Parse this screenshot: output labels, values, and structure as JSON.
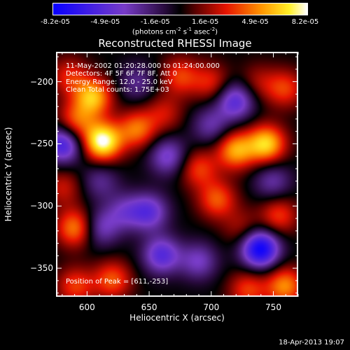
{
  "chart_data": {
    "type": "heatmap",
    "title": "Reconstructed RHESSI Image",
    "xlabel": "Heliocentric X (arcsec)",
    "ylabel": "Heliocentric Y (arcsec)",
    "xlim": [
      575,
      770
    ],
    "ylim": [
      -373,
      -176
    ],
    "x_ticks": [
      600,
      650,
      700,
      750
    ],
    "y_ticks": [
      -200,
      -250,
      -300,
      -350
    ],
    "colorbar": {
      "ticks": [
        "-8.2e-05",
        "-4.9e-05",
        "-1.6e-05",
        "1.6e-05",
        "4.9e-05",
        "8.2e-05"
      ],
      "units_base": "(photons cm",
      "units_exp1": "-2",
      "units_mid": " s",
      "units_exp2": "-1",
      "units_end": " asec",
      "units_exp3": "-2",
      "units_close": ")",
      "min": -8.2e-05,
      "max": 8.2e-05
    },
    "annotations": {
      "time_range": "11-May-2002 01:20:28.000 to 01:24:00.000",
      "detectors": "Detectors: 4F 5F 6F 7F 8F, Att 0",
      "energy": "Energy Range: 12.0 - 25.0 keV",
      "clean": "Clean    Total counts: 1.75E+03",
      "peak": "Position of Peak = [611,-253]"
    },
    "blobs": [
      {
        "x": 612,
        "y": -248,
        "v": 8.2e-05
      },
      {
        "x": 604,
        "y": -212,
        "v": 6e-05
      },
      {
        "x": 590,
        "y": -232,
        "v": 4e-05
      },
      {
        "x": 640,
        "y": -238,
        "v": 4.5e-05
      },
      {
        "x": 662,
        "y": -225,
        "v": 2.5e-05
      },
      {
        "x": 675,
        "y": -195,
        "v": 3.5e-05
      },
      {
        "x": 585,
        "y": -195,
        "v": 3e-05
      },
      {
        "x": 720,
        "y": -255,
        "v": 5.5e-05
      },
      {
        "x": 745,
        "y": -250,
        "v": 6.5e-05
      },
      {
        "x": 760,
        "y": -205,
        "v": 3.5e-05
      },
      {
        "x": 738,
        "y": -200,
        "v": 2e-05
      },
      {
        "x": 700,
        "y": -200,
        "v": 3e-05
      },
      {
        "x": 690,
        "y": -270,
        "v": 3.5e-05
      },
      {
        "x": 705,
        "y": -295,
        "v": 4e-05
      },
      {
        "x": 755,
        "y": -308,
        "v": 3.5e-05
      },
      {
        "x": 725,
        "y": -318,
        "v": 2e-05
      },
      {
        "x": 590,
        "y": -318,
        "v": 5e-05
      },
      {
        "x": 580,
        "y": -285,
        "v": 2.5e-05
      },
      {
        "x": 620,
        "y": -360,
        "v": 4e-05
      },
      {
        "x": 590,
        "y": -365,
        "v": 3.5e-05
      },
      {
        "x": 760,
        "y": -365,
        "v": 5e-05
      },
      {
        "x": 730,
        "y": -368,
        "v": 3.5e-05
      },
      {
        "x": 665,
        "y": -260,
        "v": -4e-05
      },
      {
        "x": 650,
        "y": -305,
        "v": -4.5e-05
      },
      {
        "x": 660,
        "y": -340,
        "v": -5e-05
      },
      {
        "x": 690,
        "y": -345,
        "v": -3.5e-05
      },
      {
        "x": 630,
        "y": -305,
        "v": -3e-05
      },
      {
        "x": 740,
        "y": -335,
        "v": -8.2e-05
      },
      {
        "x": 720,
        "y": -215,
        "v": -5e-05
      },
      {
        "x": 580,
        "y": -250,
        "v": -6e-05
      },
      {
        "x": 700,
        "y": -235,
        "v": -3e-05
      },
      {
        "x": 610,
        "y": -280,
        "v": -2.5e-05
      },
      {
        "x": 750,
        "y": -280,
        "v": -3e-05
      },
      {
        "x": 640,
        "y": -200,
        "v": -2.5e-05
      },
      {
        "x": 610,
        "y": -318,
        "v": -3.5e-05
      }
    ]
  },
  "footer": {
    "timestamp": "18-Apr-2013 19:07"
  }
}
